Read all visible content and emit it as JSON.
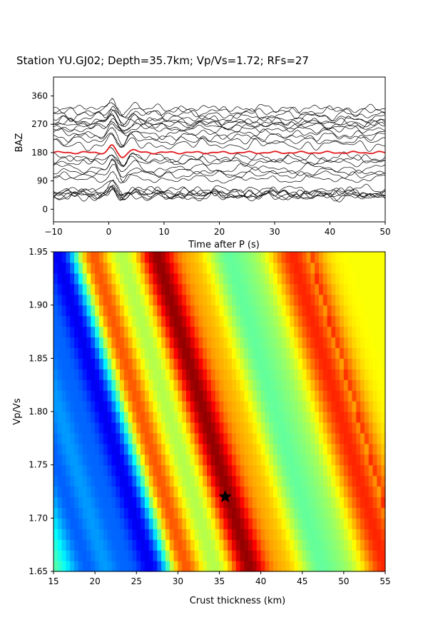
{
  "title": "Station YU.GJ02; Depth=35.7km; Vp/Vs=1.72; RFs=27",
  "chart_data": [
    {
      "type": "line",
      "panel": "receiver-functions",
      "xlabel": "Time after P (s)",
      "ylabel": "BAZ",
      "xlim": [
        -10,
        50
      ],
      "ylim": [
        -40,
        420
      ],
      "x_ticks": [
        -10,
        0,
        10,
        20,
        30,
        40,
        50
      ],
      "y_ticks": [
        0,
        90,
        180,
        270,
        360
      ],
      "grid": false,
      "trace_color": "#000000",
      "stack_color": "#e31a1c",
      "trace_baz": [
        40,
        42,
        45,
        48,
        52,
        55,
        60,
        95,
        110,
        118,
        130,
        150,
        155,
        165,
        205,
        218,
        230,
        240,
        255,
        262,
        270,
        275,
        280,
        290,
        300,
        310,
        320
      ],
      "stack_baz": 180
    },
    {
      "type": "heatmap",
      "panel": "h-kappa-stack",
      "xlabel": "Crust thickness (km)",
      "ylabel": "Vp/Vs",
      "xlim": [
        15,
        55
      ],
      "ylim": [
        1.65,
        1.95
      ],
      "x_ticks": [
        15,
        20,
        25,
        30,
        35,
        40,
        45,
        50,
        55
      ],
      "y_ticks": [
        "1.65",
        "1.70",
        "1.75",
        "1.80",
        "1.85",
        "1.90",
        "1.95"
      ],
      "colormap": "jet",
      "best_fit": {
        "thickness_km": 35.7,
        "vpvs": 1.72,
        "marker": "star"
      }
    }
  ]
}
